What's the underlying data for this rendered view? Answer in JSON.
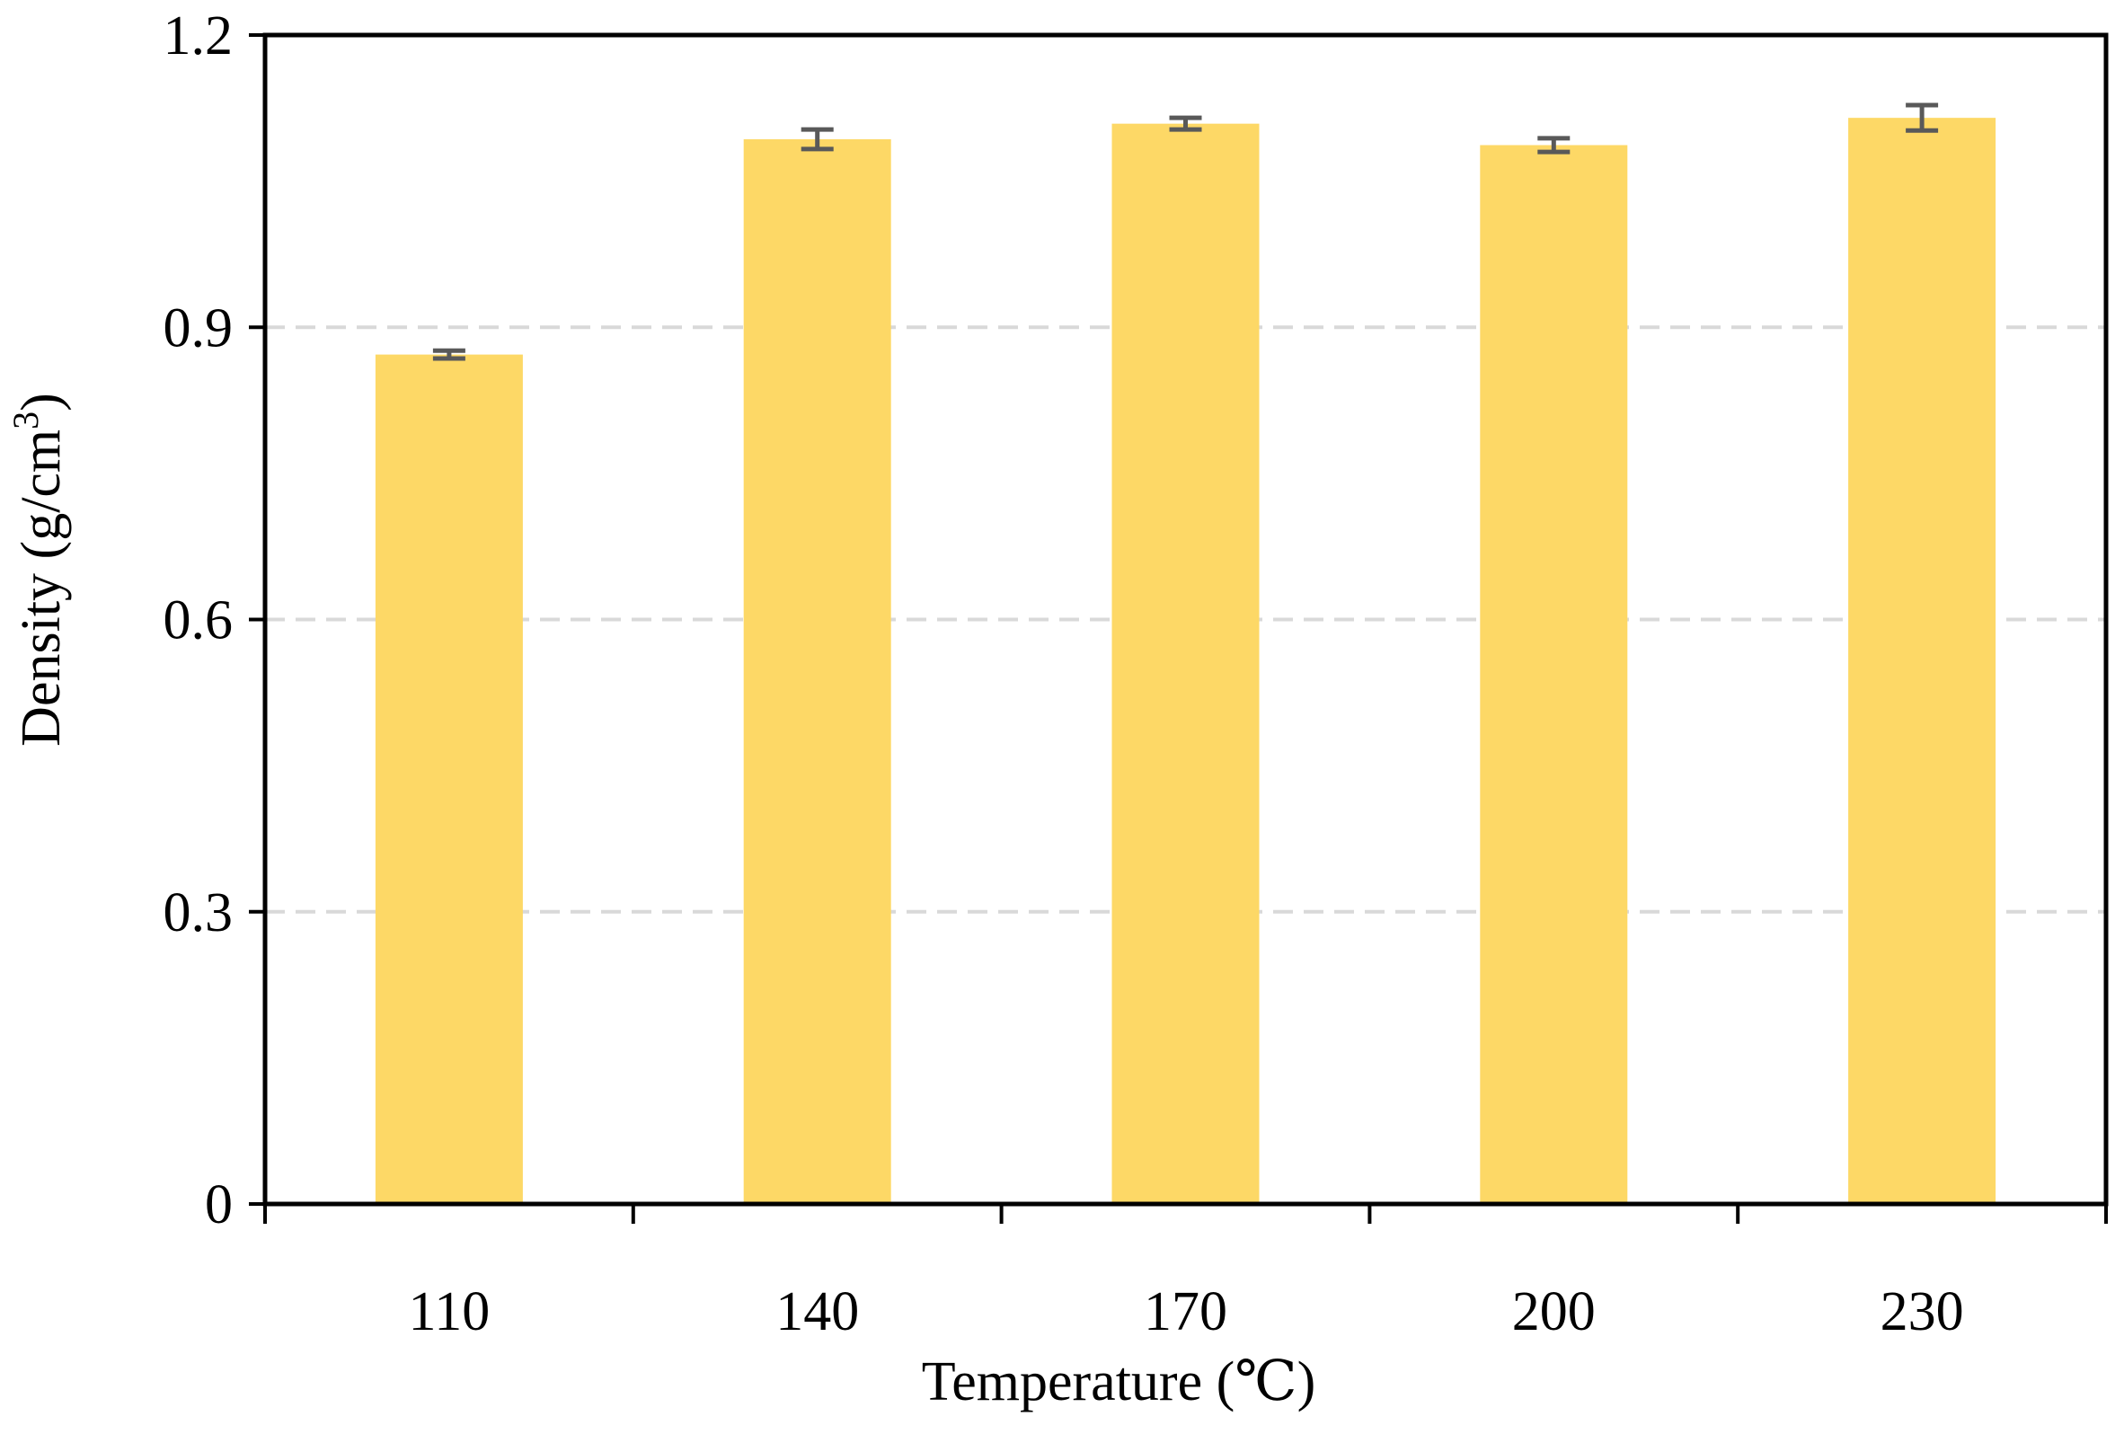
{
  "chart_data": {
    "type": "bar",
    "categories": [
      "110",
      "140",
      "170",
      "200",
      "230"
    ],
    "series": [
      {
        "values": [
          0.872,
          1.093,
          1.109,
          1.087,
          1.115
        ],
        "errors": [
          0.004,
          0.01,
          0.006,
          0.007,
          0.013
        ]
      }
    ],
    "xlabel": "Temperature (℃)",
    "ylabel_main": "Density (g/cm",
    "ylabel_sup": "3",
    "ylabel_close": ")",
    "ylim": [
      0,
      1.2
    ],
    "yticks": [
      "0",
      "0.3",
      "0.6",
      "0.9",
      "1.2"
    ],
    "grid": "horizontal-dashed",
    "legend": "none"
  },
  "colors": {
    "bar": "#FDD866",
    "error_bar": "#595959",
    "grid": "#D9D9D9",
    "axis": "#000000"
  }
}
